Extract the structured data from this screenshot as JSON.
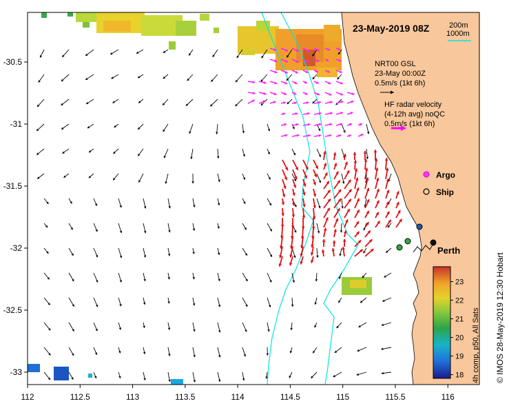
{
  "title": "23-May-2019 08Z",
  "legend_depth": {
    "label1": "200m",
    "label2": "1000m",
    "color": "#00e5e5"
  },
  "model_legend": {
    "line1": "NRT00 GSL",
    "line2": "23-May 00:00Z",
    "line3": "0.5m/s (1kt 6h)",
    "color": "#000000"
  },
  "hf_legend": {
    "line1": "HF radar velocity",
    "line2": "(4-12h avg) noQC",
    "line3": "0.5m/s (1kt 6h)",
    "color": "#ff00ff"
  },
  "markers": {
    "argo": "Argo",
    "ship": "Ship"
  },
  "city": "Perth",
  "colorbar": {
    "label": "4h comp, p50, All Sats",
    "ticks": [
      "23",
      "22",
      "21",
      "20",
      "19",
      "18"
    ],
    "range": [
      17.8,
      23.8
    ]
  },
  "credit": "© IMOS 28-May-2019 12:30 Hobart",
  "axes": {
    "x_ticks": [
      "112",
      "112.5",
      "113",
      "113.5",
      "114",
      "114.5",
      "115",
      "115.5",
      "116"
    ],
    "x_values": [
      112,
      112.5,
      113,
      113.5,
      114,
      114.5,
      115,
      115.5,
      116
    ],
    "y_ticks": [
      "-30.5",
      "-31",
      "-31.5",
      "-32",
      "-32.5",
      "-33"
    ],
    "y_values": [
      -30.5,
      -31,
      -31.5,
      -32,
      -32.5,
      -33
    ],
    "lon_range": [
      112,
      116.3
    ],
    "lat_range": [
      -33.1,
      -30.1
    ]
  },
  "colors": {
    "land": "#f8c79b",
    "hf_arrows": "#dd1111",
    "argo_arrows": "#ff22ff",
    "isobath": "#00e5e5"
  }
}
